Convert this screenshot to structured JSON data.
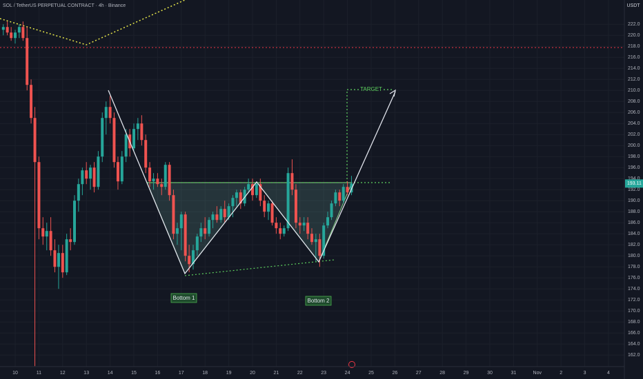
{
  "chart_data": {
    "type": "candlestick",
    "title": "SOL / TetherUS PERPETUAL CONTRACT · 4h · Binance",
    "currency": "USDT",
    "annotations": [
      "TARGET",
      "Bottom 1",
      "Bottom 2"
    ],
    "up_color": "#26a69a",
    "down_color": "#ef5350",
    "last_price": 193.11,
    "x": [
      9.5,
      9.67,
      9.83,
      10,
      10.17,
      10.33,
      10.5,
      10.67,
      10.83,
      11,
      11.17,
      11.33,
      11.5,
      11.67,
      11.83,
      12,
      12.17,
      12.33,
      12.5,
      12.67,
      12.83,
      13,
      13.17,
      13.33,
      13.5,
      13.67,
      13.83,
      14,
      14.17,
      14.33,
      14.5,
      14.67,
      14.83,
      15,
      15.17,
      15.33,
      15.5,
      15.67,
      15.83,
      16,
      16.17,
      16.33,
      16.5,
      16.67,
      16.83,
      17,
      17.17,
      17.33,
      17.5,
      17.67,
      17.83,
      18,
      18.17,
      18.33,
      18.5,
      18.67,
      18.83,
      19,
      19.17,
      19.33,
      19.5,
      19.67,
      19.83,
      20,
      20.17,
      20.33,
      20.5,
      20.67,
      20.83,
      21,
      21.17,
      21.33,
      21.5,
      21.67,
      21.83,
      22,
      22.17,
      22.33,
      22.5,
      22.67,
      22.83,
      23,
      23.17,
      23.33,
      23.5,
      23.67,
      23.83,
      24,
      24.17
    ],
    "open": [
      221,
      221.5,
      220.5,
      219.5,
      220.5,
      221.5,
      219.5,
      211,
      205,
      197,
      185,
      183.5,
      184.5,
      181,
      178,
      180.5,
      177,
      183,
      182.5,
      190,
      193,
      195.5,
      194,
      196,
      192.5,
      198,
      205,
      207,
      205,
      197,
      193.5,
      198,
      202,
      199.5,
      203,
      204,
      201,
      196,
      193.5,
      194,
      193,
      192.5,
      196.5,
      191,
      184,
      185,
      187.5,
      180,
      178.5,
      181,
      183.5,
      185,
      184,
      186.5,
      187.5,
      186.5,
      188.5,
      187,
      189,
      190.5,
      191.5,
      189.5,
      192,
      193,
      191,
      193,
      190,
      188,
      189.5,
      186,
      185,
      184,
      185,
      195,
      192,
      186,
      185.5,
      186,
      184,
      182.5,
      183,
      180,
      185.5,
      187,
      189.5,
      191.5,
      190,
      192.5,
      191.5
    ],
    "high": [
      222,
      222.5,
      221.5,
      221,
      222,
      222.5,
      221.5,
      212,
      207,
      198,
      187,
      186,
      187,
      183,
      182,
      182,
      184,
      185,
      191,
      194,
      196,
      197,
      196.5,
      197,
      199,
      206,
      208,
      209,
      206,
      198,
      199,
      203,
      203,
      204,
      205,
      205.5,
      202,
      197,
      195,
      195,
      194,
      197,
      197,
      192,
      186,
      188,
      188,
      182,
      182,
      184,
      186,
      187,
      187,
      188,
      189,
      189,
      190,
      189.5,
      191,
      192,
      192,
      192.5,
      194,
      194,
      193.5,
      194,
      191,
      190,
      190,
      187,
      186,
      185.5,
      196,
      197.5,
      193,
      187,
      187,
      187,
      185,
      184,
      184,
      186,
      188,
      190,
      192,
      192,
      193,
      193.5,
      194.5
    ],
    "low": [
      220,
      220,
      219,
      218.5,
      219.5,
      219,
      210,
      204,
      160,
      183,
      182,
      181,
      180,
      177,
      174,
      176,
      176.5,
      181,
      182,
      188,
      191,
      193,
      192,
      191.5,
      192,
      197,
      202,
      204,
      196,
      192,
      193,
      197,
      198,
      199,
      201,
      200,
      195,
      192.5,
      192,
      192.5,
      191,
      192,
      190,
      183,
      182,
      181,
      179,
      177,
      177.5,
      180,
      182.5,
      183,
      183.5,
      185,
      186,
      186,
      186,
      186.5,
      187,
      189,
      188.5,
      189,
      191.5,
      190,
      190.5,
      189,
      187,
      186.5,
      185.5,
      184,
      183,
      183.5,
      184.5,
      191,
      185,
      184,
      184.5,
      183,
      182,
      179,
      178,
      179.5,
      185,
      186.5,
      189,
      189,
      189.5,
      191,
      191
    ],
    "close": [
      221.5,
      220.5,
      219.5,
      220.5,
      221.5,
      219.5,
      211,
      205,
      197,
      185,
      183.5,
      184.5,
      181,
      178,
      180.5,
      177,
      183,
      182.5,
      190,
      193,
      195.5,
      194,
      196,
      192.5,
      198,
      205,
      207,
      205,
      197,
      193.5,
      198,
      202,
      199.5,
      203,
      204,
      201,
      196,
      193.5,
      194,
      193,
      192.5,
      196.5,
      191,
      184,
      185,
      187.5,
      180,
      178.5,
      181,
      183.5,
      185,
      184,
      186.5,
      187.5,
      186.5,
      188.5,
      187,
      189,
      190.5,
      191.5,
      189.5,
      192,
      193,
      191,
      193,
      190,
      188,
      189.5,
      186,
      185,
      184,
      185,
      195,
      192,
      186,
      185.5,
      186,
      184,
      182.5,
      183,
      180,
      185.5,
      187,
      189.5,
      191.5,
      190,
      192.5,
      191.5,
      193.11
    ],
    "xlim": [
      9.36,
      35.67
    ],
    "xticks": [
      10,
      11,
      12,
      13,
      14,
      15,
      16,
      17,
      18,
      19,
      20,
      21,
      22,
      23,
      24,
      25,
      26,
      27,
      28,
      29,
      30,
      31,
      {
        "value": 32,
        "label": "Nov"
      },
      {
        "value": 33,
        "label": "2"
      },
      {
        "value": 34,
        "label": "3"
      },
      {
        "value": 35,
        "label": "4"
      }
    ],
    "ylim": [
      159.9,
      226.4
    ],
    "yticks": [
      {
        "value": 162,
        "label": "162.0"
      },
      {
        "value": 164,
        "label": "164.0"
      },
      {
        "value": 166,
        "label": "166.0"
      },
      {
        "value": 168,
        "label": "168.0"
      },
      {
        "value": 170,
        "label": "170.0"
      },
      {
        "value": 172,
        "label": "172.0"
      },
      {
        "value": 174,
        "label": "174.0"
      },
      {
        "value": 176,
        "label": "176.0"
      },
      {
        "value": 178,
        "label": "178.0"
      },
      {
        "value": 180,
        "label": "180.0"
      },
      {
        "value": 182,
        "label": "182.0"
      },
      {
        "value": 184,
        "label": "184.0"
      },
      {
        "value": 186,
        "label": "186.0"
      },
      {
        "value": 188,
        "label": "188.0"
      },
      {
        "value": 190,
        "label": "190.0"
      },
      {
        "value": 192,
        "label": "192.0"
      },
      {
        "value": 194,
        "label": "194.0"
      },
      {
        "value": 196,
        "label": "196.0"
      },
      {
        "value": 198,
        "label": "198.0"
      },
      {
        "value": 200,
        "label": "200.0"
      },
      {
        "value": 202,
        "label": "202.0"
      },
      {
        "value": 204,
        "label": "204.0"
      },
      {
        "value": 206,
        "label": "206.0"
      },
      {
        "value": 208,
        "label": "208.0"
      },
      {
        "value": 210,
        "label": "210.0"
      },
      {
        "value": 212,
        "label": "212.0"
      },
      {
        "value": 214,
        "label": "214.0"
      },
      {
        "value": 216,
        "label": "216.0"
      },
      {
        "value": 218,
        "label": "218.0"
      },
      {
        "value": 220,
        "label": "220.0"
      },
      {
        "value": 222,
        "label": "222.0"
      }
    ],
    "grid": true
  }
}
